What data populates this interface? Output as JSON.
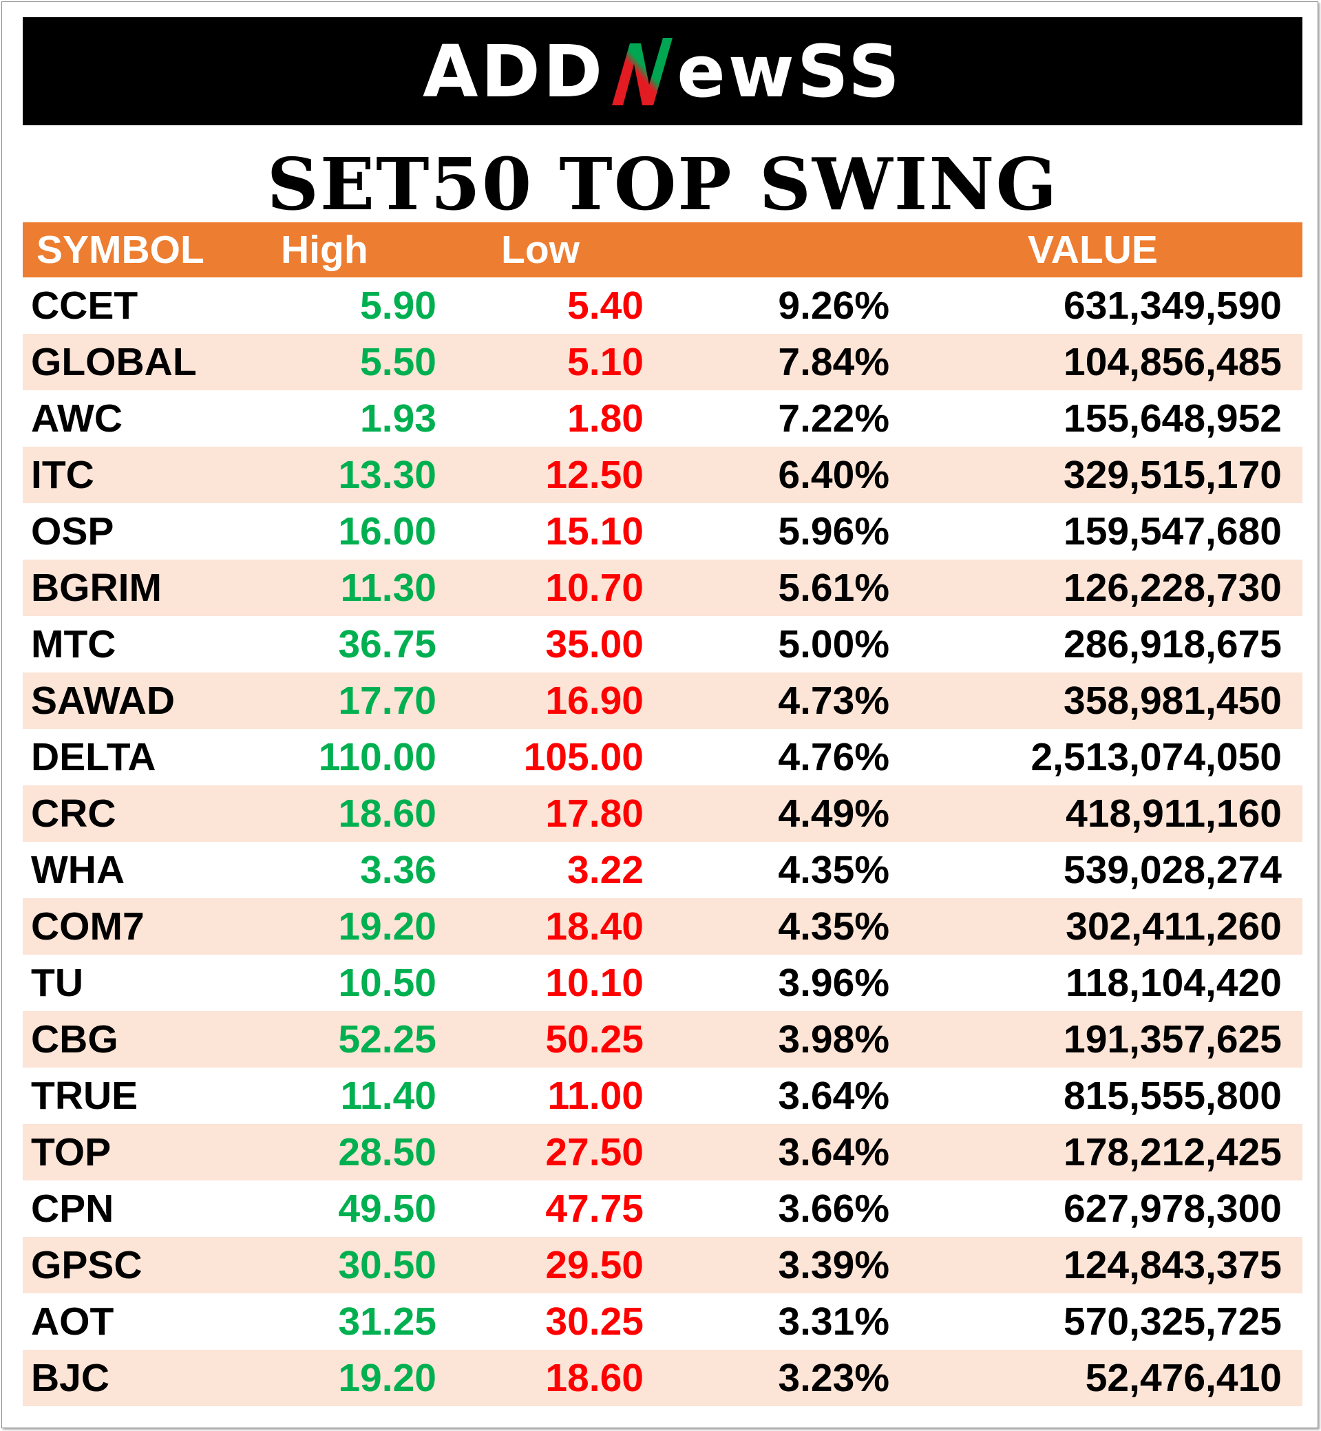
{
  "brand": {
    "part1": "ADD",
    "part2": "ewSS",
    "accent_colors": [
      "#00a651",
      "#e31b23"
    ]
  },
  "title": "SET50 TOP SWING",
  "table": {
    "headers": {
      "symbol": "SYMBOL",
      "high": "High",
      "low": "Low",
      "pct": "",
      "value": "VALUE"
    },
    "colors": {
      "header_bg": "#ed7d31",
      "alt_row_bg": "#fce4d6",
      "high_text": "#00b050",
      "low_text": "#ff0000"
    },
    "rows": [
      {
        "symbol": "CCET",
        "high": "5.90",
        "low": "5.40",
        "pct": "9.26%",
        "value": "631,349,590"
      },
      {
        "symbol": "GLOBAL",
        "high": "5.50",
        "low": "5.10",
        "pct": "7.84%",
        "value": "104,856,485"
      },
      {
        "symbol": "AWC",
        "high": "1.93",
        "low": "1.80",
        "pct": "7.22%",
        "value": "155,648,952"
      },
      {
        "symbol": "ITC",
        "high": "13.30",
        "low": "12.50",
        "pct": "6.40%",
        "value": "329,515,170"
      },
      {
        "symbol": "OSP",
        "high": "16.00",
        "low": "15.10",
        "pct": "5.96%",
        "value": "159,547,680"
      },
      {
        "symbol": "BGRIM",
        "high": "11.30",
        "low": "10.70",
        "pct": "5.61%",
        "value": "126,228,730"
      },
      {
        "symbol": "MTC",
        "high": "36.75",
        "low": "35.00",
        "pct": "5.00%",
        "value": "286,918,675"
      },
      {
        "symbol": "SAWAD",
        "high": "17.70",
        "low": "16.90",
        "pct": "4.73%",
        "value": "358,981,450"
      },
      {
        "symbol": "DELTA",
        "high": "110.00",
        "low": "105.00",
        "pct": "4.76%",
        "value": "2,513,074,050"
      },
      {
        "symbol": "CRC",
        "high": "18.60",
        "low": "17.80",
        "pct": "4.49%",
        "value": "418,911,160"
      },
      {
        "symbol": "WHA",
        "high": "3.36",
        "low": "3.22",
        "pct": "4.35%",
        "value": "539,028,274"
      },
      {
        "symbol": "COM7",
        "high": "19.20",
        "low": "18.40",
        "pct": "4.35%",
        "value": "302,411,260"
      },
      {
        "symbol": "TU",
        "high": "10.50",
        "low": "10.10",
        "pct": "3.96%",
        "value": "118,104,420"
      },
      {
        "symbol": "CBG",
        "high": "52.25",
        "low": "50.25",
        "pct": "3.98%",
        "value": "191,357,625"
      },
      {
        "symbol": "TRUE",
        "high": "11.40",
        "low": "11.00",
        "pct": "3.64%",
        "value": "815,555,800"
      },
      {
        "symbol": "TOP",
        "high": "28.50",
        "low": "27.50",
        "pct": "3.64%",
        "value": "178,212,425"
      },
      {
        "symbol": "CPN",
        "high": "49.50",
        "low": "47.75",
        "pct": "3.66%",
        "value": "627,978,300"
      },
      {
        "symbol": "GPSC",
        "high": "30.50",
        "low": "29.50",
        "pct": "3.39%",
        "value": "124,843,375"
      },
      {
        "symbol": "AOT",
        "high": "31.25",
        "low": "30.25",
        "pct": "3.31%",
        "value": "570,325,725"
      },
      {
        "symbol": "BJC",
        "high": "19.20",
        "low": "18.60",
        "pct": "3.23%",
        "value": "52,476,410"
      }
    ]
  }
}
